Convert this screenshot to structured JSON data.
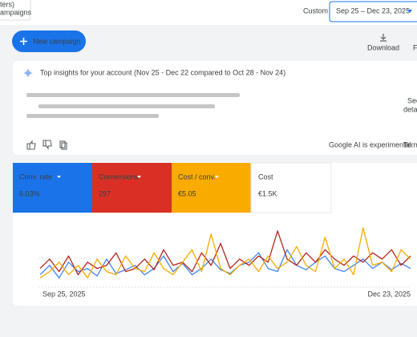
{
  "header": {
    "partial_label_1": "ters)",
    "partial_label_2": "ampaigns",
    "date_range_label": "Custom",
    "date_range": "Sep 25 – Dec 23, 2025"
  },
  "toolbar": {
    "new_campaign": "New campaign",
    "download": "Download",
    "partial_button": "F"
  },
  "insights": {
    "title": "Top insights for your account (Nov 25 - Dec 22 compared to Oct 28 - Nov 24)",
    "see_details_1": "See",
    "see_details_2": "deta",
    "disclaimer": "Google AI is experimental.",
    "terms": "Term"
  },
  "metrics": [
    {
      "label": "Conv. rate",
      "value": "6.03%"
    },
    {
      "label": "Conversions",
      "value": "297"
    },
    {
      "label": "Cost / conv.",
      "value": "€5.05"
    },
    {
      "label": "Cost",
      "value": "€1.5K"
    }
  ],
  "chart_data": {
    "type": "line",
    "x": [
      "Sep 25, 2025",
      null,
      null,
      null,
      null,
      null,
      null,
      null,
      null,
      null,
      null,
      null,
      null,
      null,
      null,
      null,
      null,
      null,
      null,
      null,
      null,
      null,
      null,
      null,
      null,
      null,
      null,
      null,
      null,
      null,
      null,
      null,
      null,
      null,
      null,
      null,
      null,
      null,
      null,
      "Dec 23, 2025"
    ],
    "ylim": [
      0,
      100
    ],
    "series": [
      {
        "name": "Conv. rate",
        "color": "#4285f4",
        "values": [
          20,
          35,
          15,
          40,
          25,
          30,
          18,
          45,
          22,
          28,
          35,
          20,
          30,
          50,
          25,
          38,
          20,
          30,
          45,
          28,
          22,
          35,
          40,
          55,
          30,
          25,
          60,
          35,
          28,
          40,
          50,
          30,
          25,
          35,
          45,
          30,
          40,
          28,
          38,
          30
        ]
      },
      {
        "name": "Conversions",
        "color": "#b3261e",
        "values": [
          30,
          45,
          25,
          50,
          20,
          40,
          30,
          35,
          55,
          25,
          30,
          45,
          28,
          60,
          35,
          40,
          25,
          55,
          35,
          70,
          30,
          45,
          35,
          50,
          40,
          90,
          45,
          35,
          55,
          40,
          60,
          45,
          35,
          50,
          40,
          55,
          45,
          60,
          35,
          50
        ]
      },
      {
        "name": "Cost / conv.",
        "color": "#f9ab00",
        "values": [
          15,
          25,
          40,
          20,
          35,
          15,
          45,
          25,
          20,
          50,
          30,
          25,
          55,
          30,
          20,
          40,
          60,
          25,
          85,
          30,
          20,
          35,
          45,
          25,
          50,
          30,
          40,
          65,
          35,
          25,
          80,
          30,
          45,
          20,
          95,
          35,
          40,
          25,
          60,
          45
        ]
      }
    ]
  }
}
